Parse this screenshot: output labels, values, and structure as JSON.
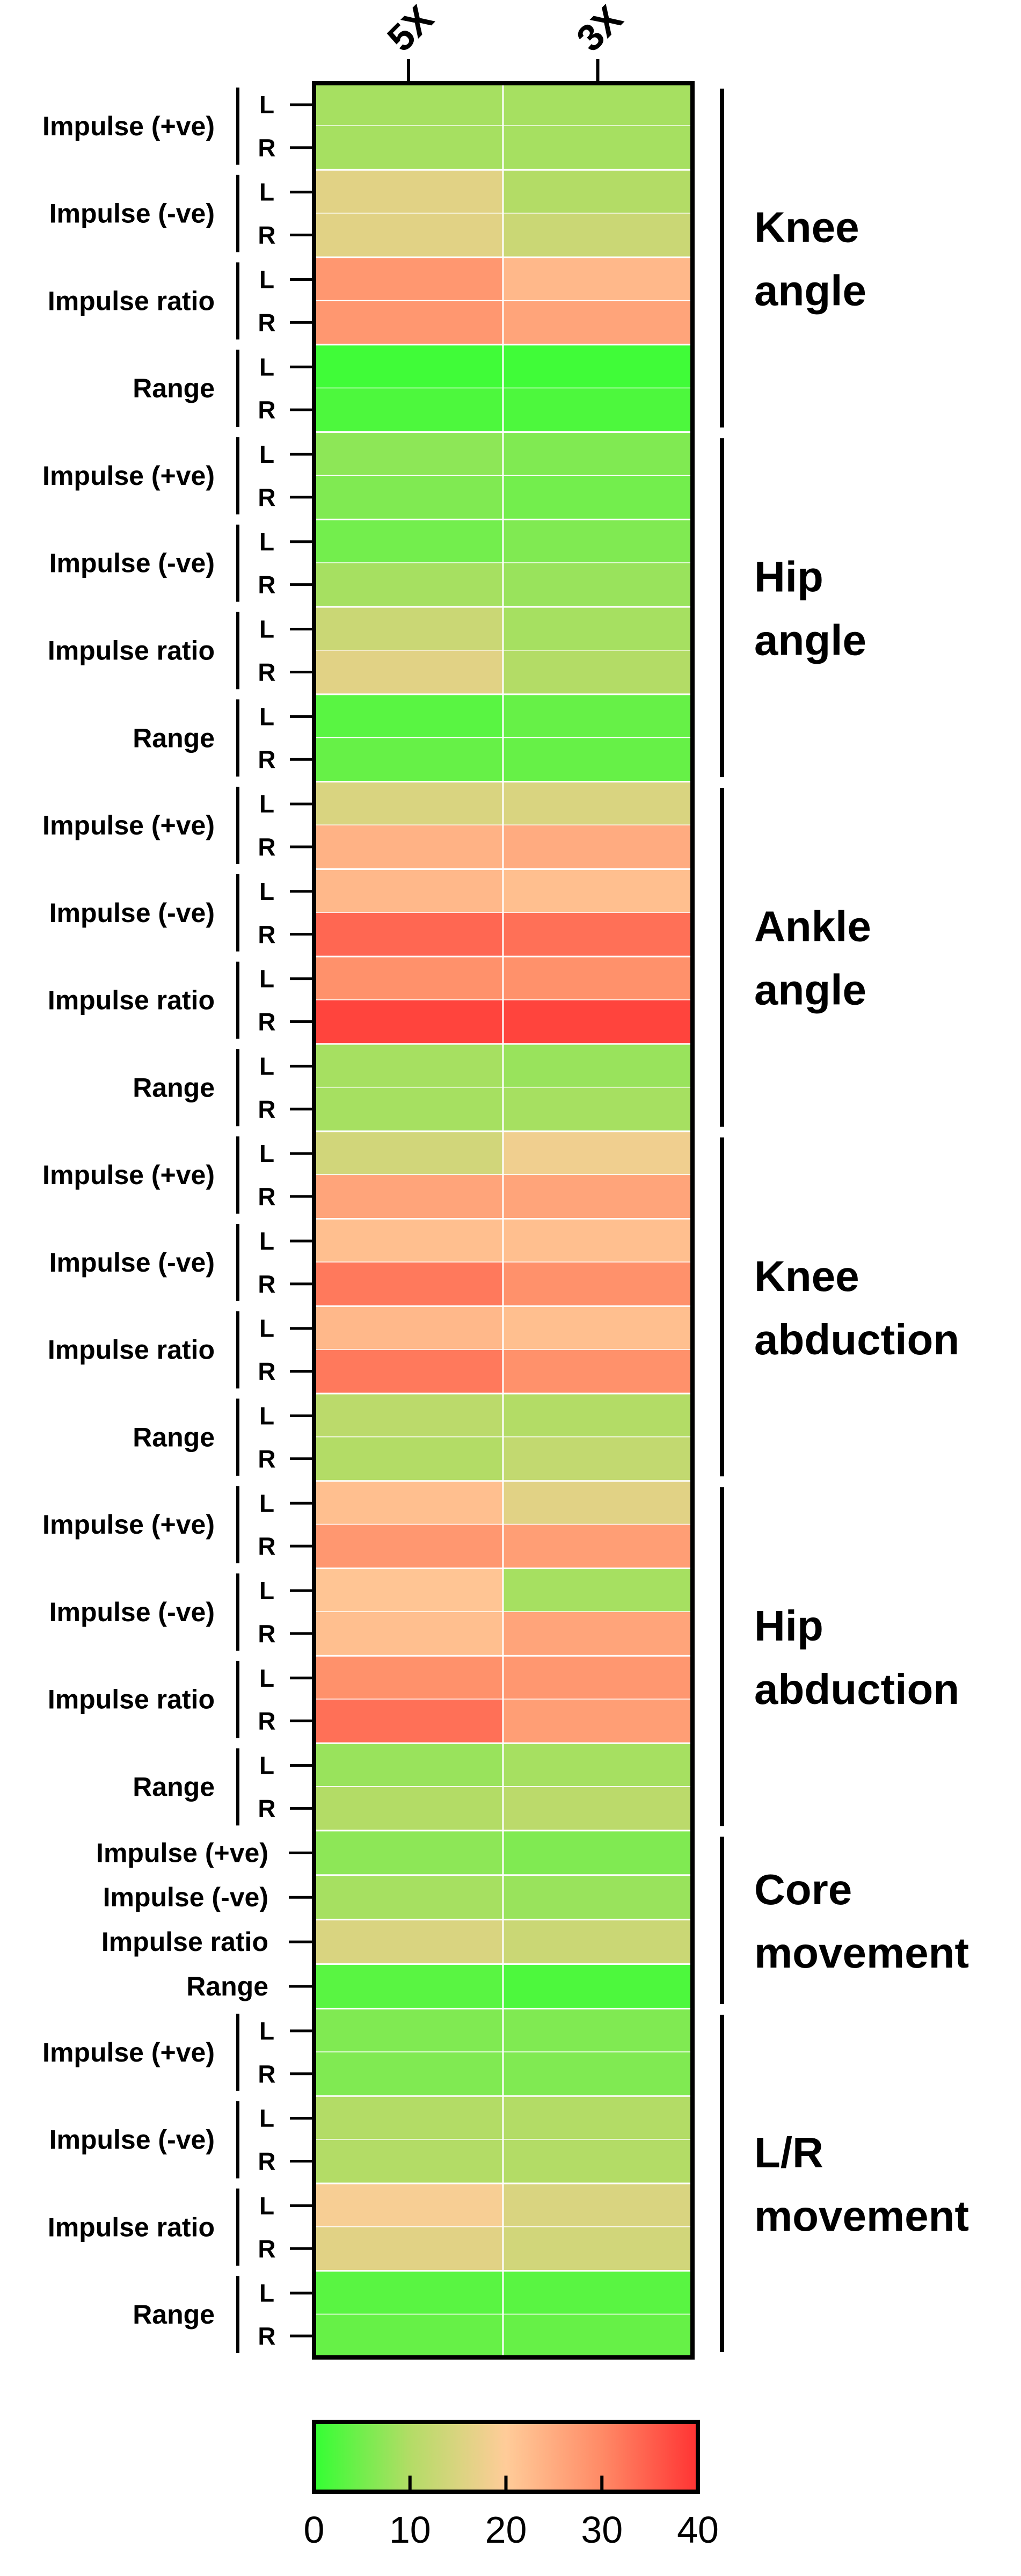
{
  "chart_data": {
    "type": "heatmap",
    "columns": [
      "5X",
      "3X"
    ],
    "groups": [
      {
        "label": [
          "Knee",
          "angle"
        ],
        "features": [
          {
            "name": "Impulse (+ve)",
            "rows": [
              {
                "side": "L",
                "values": [
                  9,
                  9
                ]
              },
              {
                "side": "R",
                "values": [
                  9,
                  9
                ]
              }
            ]
          },
          {
            "name": "Impulse (-ve)",
            "rows": [
              {
                "side": "L",
                "values": [
                  16,
                  10
                ]
              },
              {
                "side": "R",
                "values": [
                  16,
                  13
                ]
              }
            ]
          },
          {
            "name": "Impulse ratio",
            "rows": [
              {
                "side": "L",
                "values": [
                  28,
                  23
                ]
              },
              {
                "side": "R",
                "values": [
                  28,
                  26
                ]
              }
            ]
          },
          {
            "name": "Range",
            "rows": [
              {
                "side": "L",
                "values": [
                  1,
                  1
                ]
              },
              {
                "side": "R",
                "values": [
                  2,
                  2
                ]
              }
            ]
          }
        ]
      },
      {
        "label": [
          "Hip",
          "angle"
        ],
        "features": [
          {
            "name": "Impulse (+ve)",
            "rows": [
              {
                "side": "L",
                "values": [
                  7,
                  6
                ]
              },
              {
                "side": "R",
                "values": [
                  6,
                  5
                ]
              }
            ]
          },
          {
            "name": "Impulse (-ve)",
            "rows": [
              {
                "side": "L",
                "values": [
                  5,
                  6
                ]
              },
              {
                "side": "R",
                "values": [
                  9,
                  8
                ]
              }
            ]
          },
          {
            "name": "Impulse ratio",
            "rows": [
              {
                "side": "L",
                "values": [
                  13,
                  9
                ]
              },
              {
                "side": "R",
                "values": [
                  16,
                  10
                ]
              }
            ]
          },
          {
            "name": "Range",
            "rows": [
              {
                "side": "L",
                "values": [
                  3,
                  4
                ]
              },
              {
                "side": "R",
                "values": [
                  4,
                  4
                ]
              }
            ]
          }
        ]
      },
      {
        "label": [
          "Ankle",
          "angle"
        ],
        "features": [
          {
            "name": "Impulse (+ve)",
            "rows": [
              {
                "side": "L",
                "values": [
                  15,
                  15
                ]
              },
              {
                "side": "R",
                "values": [
                  24,
                  25
                ]
              }
            ]
          },
          {
            "name": "Impulse (-ve)",
            "rows": [
              {
                "side": "L",
                "values": [
                  23,
                  22
                ]
              },
              {
                "side": "R",
                "values": [
                  34,
                  33
                ]
              }
            ]
          },
          {
            "name": "Impulse ratio",
            "rows": [
              {
                "side": "L",
                "values": [
                  29,
                  29
                ]
              },
              {
                "side": "R",
                "values": [
                  38,
                  38
                ]
              }
            ]
          },
          {
            "name": "Range",
            "rows": [
              {
                "side": "L",
                "values": [
                  9,
                  8
                ]
              },
              {
                "side": "R",
                "values": [
                  9,
                  9
                ]
              }
            ]
          }
        ]
      },
      {
        "label": [
          "Knee",
          "abduction"
        ],
        "features": [
          {
            "name": "Impulse (+ve)",
            "rows": [
              {
                "side": "L",
                "values": [
                  14,
                  18
                ]
              },
              {
                "side": "R",
                "values": [
                  26,
                  26
                ]
              }
            ]
          },
          {
            "name": "Impulse (-ve)",
            "rows": [
              {
                "side": "L",
                "values": [
                  22,
                  22
                ]
              },
              {
                "side": "R",
                "values": [
                  32,
                  29
                ]
              }
            ]
          },
          {
            "name": "Impulse ratio",
            "rows": [
              {
                "side": "L",
                "values": [
                  23,
                  22
                ]
              },
              {
                "side": "R",
                "values": [
                  32,
                  29
                ]
              }
            ]
          },
          {
            "name": "Range",
            "rows": [
              {
                "side": "L",
                "values": [
                  11,
                  10
                ]
              },
              {
                "side": "R",
                "values": [
                  10,
                  12
                ]
              }
            ]
          }
        ]
      },
      {
        "label": [
          "Hip",
          "abduction"
        ],
        "features": [
          {
            "name": "Impulse (+ve)",
            "rows": [
              {
                "side": "L",
                "values": [
                  22,
                  16
                ]
              },
              {
                "side": "R",
                "values": [
                  28,
                  27
                ]
              }
            ]
          },
          {
            "name": "Impulse (-ve)",
            "rows": [
              {
                "side": "L",
                "values": [
                  21,
                  9
                ]
              },
              {
                "side": "R",
                "values": [
                  22,
                  26
                ]
              }
            ]
          },
          {
            "name": "Impulse ratio",
            "rows": [
              {
                "side": "L",
                "values": [
                  29,
                  28
                ]
              },
              {
                "side": "R",
                "values": [
                  33,
                  27
                ]
              }
            ]
          },
          {
            "name": "Range",
            "rows": [
              {
                "side": "L",
                "values": [
                  8,
                  9
                ]
              },
              {
                "side": "R",
                "values": [
                  10,
                  11
                ]
              }
            ]
          }
        ]
      },
      {
        "label": [
          "Core",
          "movement"
        ],
        "features": [
          {
            "name": "Impulse (+ve)",
            "rows": [
              {
                "side": "",
                "values": [
                  7,
                  6
                ]
              }
            ]
          },
          {
            "name": "Impulse (-ve)",
            "rows": [
              {
                "side": "",
                "values": [
                  9,
                  8
                ]
              }
            ]
          },
          {
            "name": "Impulse ratio",
            "rows": [
              {
                "side": "",
                "values": [
                  15,
                  13
                ]
              }
            ]
          },
          {
            "name": "Range",
            "rows": [
              {
                "side": "",
                "values": [
                  3,
                  2
                ]
              }
            ]
          }
        ]
      },
      {
        "label": [
          "L/R",
          "movement"
        ],
        "features": [
          {
            "name": "Impulse (+ve)",
            "rows": [
              {
                "side": "L",
                "values": [
                  6,
                  6
                ]
              },
              {
                "side": "R",
                "values": [
                  6,
                  6
                ]
              }
            ]
          },
          {
            "name": "Impulse (-ve)",
            "rows": [
              {
                "side": "L",
                "values": [
                  10,
                  10
                ]
              },
              {
                "side": "R",
                "values": [
                  10,
                  10
                ]
              }
            ]
          },
          {
            "name": "Impulse ratio",
            "rows": [
              {
                "side": "L",
                "values": [
                  19,
                  15
                ]
              },
              {
                "side": "R",
                "values": [
                  16,
                  14
                ]
              }
            ]
          },
          {
            "name": "Range",
            "rows": [
              {
                "side": "L",
                "values": [
                  3,
                  3
                ]
              },
              {
                "side": "R",
                "values": [
                  4,
                  4
                ]
              }
            ]
          }
        ]
      }
    ],
    "colorbar": {
      "range": [
        0,
        40
      ],
      "ticks": [
        0,
        10,
        20,
        30,
        40
      ],
      "stops": [
        {
          "value": 0,
          "color": "#33ff33"
        },
        {
          "value": 10,
          "color": "#b3dc66"
        },
        {
          "value": 20,
          "color": "#ffcc99"
        },
        {
          "value": 30,
          "color": "#ff8a66"
        },
        {
          "value": 40,
          "color": "#ff3333"
        }
      ]
    },
    "colors": {
      "frame": "#000000",
      "gridline": "#ffffff"
    }
  }
}
